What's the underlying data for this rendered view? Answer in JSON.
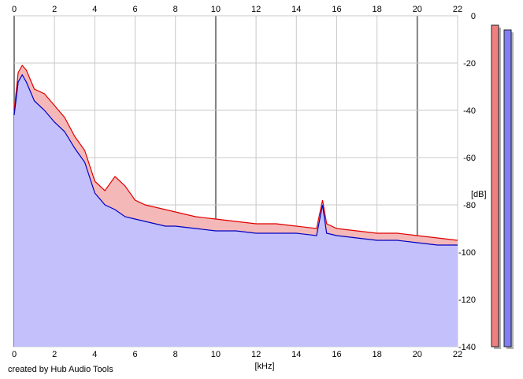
{
  "credit": "created by Hub Audio Tools",
  "chart_data": {
    "type": "area",
    "xlabel": "[kHz]",
    "ylabel": "[dB]",
    "xlim": [
      0,
      22
    ],
    "ylim": [
      -140,
      0
    ],
    "x_ticks": [
      0,
      2,
      4,
      6,
      8,
      10,
      12,
      14,
      16,
      18,
      20,
      22
    ],
    "y_ticks": [
      0,
      -20,
      -40,
      -60,
      -80,
      -100,
      -120,
      -140
    ],
    "y_tick_labels": [
      "0",
      "-20",
      "-40",
      "-60",
      "-80",
      "-100",
      "-120",
      "-140"
    ],
    "grid": true,
    "legend": "none",
    "colors": {
      "red_line": "#e00000",
      "blue_line": "#0000c0",
      "red_fill": "#f4b8b8",
      "blue_fill": "#c0c0ff",
      "grid": "#c8c8c8",
      "grid_major": "#808080"
    },
    "series": [
      {
        "color": "#e00000",
        "fill": "#f4b8b8",
        "x": [
          0,
          0.2,
          0.4,
          0.6,
          0.8,
          1.0,
          1.5,
          2.0,
          2.5,
          3.0,
          3.5,
          4.0,
          4.5,
          5.0,
          5.5,
          6.0,
          6.5,
          7.0,
          7.5,
          8.0,
          9.0,
          10.0,
          11.0,
          12.0,
          13.0,
          14.0,
          15.0,
          15.3,
          15.5,
          16.0,
          17.0,
          18.0,
          19.0,
          20.0,
          21.0,
          22.0
        ],
        "y": [
          -40,
          -24,
          -21,
          -23,
          -27,
          -31,
          -33,
          -38,
          -43,
          -51,
          -57,
          -70,
          -74,
          -68,
          -72,
          -78,
          -80,
          -81,
          -82,
          -83,
          -85,
          -86,
          -87,
          -88,
          -88,
          -89,
          -90,
          -78,
          -88,
          -90,
          -91,
          -92,
          -92,
          -93,
          -94,
          -95
        ]
      },
      {
        "color": "#0000c0",
        "fill": "#c0c0ff",
        "x": [
          0,
          0.2,
          0.4,
          0.6,
          0.8,
          1.0,
          1.5,
          2.0,
          2.5,
          3.0,
          3.5,
          4.0,
          4.5,
          5.0,
          5.5,
          6.0,
          6.5,
          7.0,
          7.5,
          8.0,
          9.0,
          10.0,
          11.0,
          12.0,
          13.0,
          14.0,
          15.0,
          15.3,
          15.5,
          16.0,
          17.0,
          18.0,
          19.0,
          20.0,
          21.0,
          22.0
        ],
        "y": [
          -42,
          -28,
          -25,
          -28,
          -32,
          -36,
          -40,
          -45,
          -49,
          -56,
          -62,
          -75,
          -80,
          -82,
          -85,
          -86,
          -87,
          -88,
          -89,
          -89,
          -90,
          -91,
          -91,
          -92,
          -92,
          -92,
          -93,
          -80,
          -92,
          -93,
          -94,
          -95,
          -95,
          -96,
          -97,
          -97
        ]
      }
    ],
    "level_meters": [
      {
        "color": "#f08080",
        "value_db": -4
      },
      {
        "color": "#8080f0",
        "value_db": -6
      }
    ]
  }
}
